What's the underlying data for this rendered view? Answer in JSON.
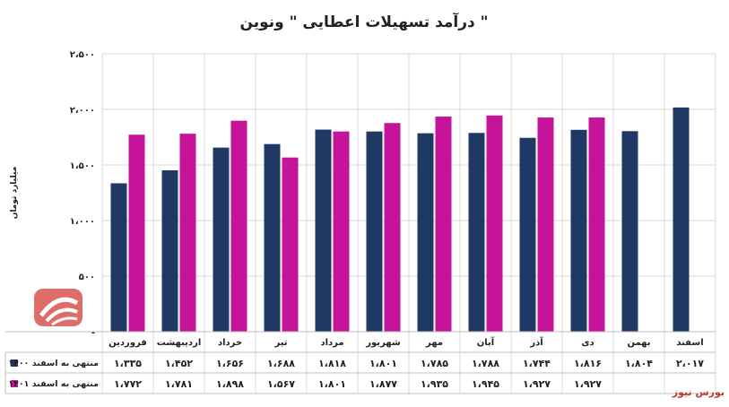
{
  "chart_data": {
    "type": "bar",
    "title": "درآمد تسهیلات اعطایی \" ونوین \"",
    "ylabel": "میلیارد تومان",
    "ylim": [
      0,
      2500
    ],
    "yticks": [
      {
        "value": 0,
        "label": "-"
      },
      {
        "value": 500,
        "label": "۵۰۰"
      },
      {
        "value": 1000,
        "label": "۱،۰۰۰"
      },
      {
        "value": 1500,
        "label": "۱،۵۰۰"
      },
      {
        "value": 2000,
        "label": "۲،۰۰۰"
      },
      {
        "value": 2500,
        "label": "۲،۵۰۰"
      }
    ],
    "grid": true,
    "legend": "bottom-left table",
    "categories": [
      "فروردین",
      "اردیبهشت",
      "خرداد",
      "تیر",
      "مرداد",
      "شهریور",
      "مهر",
      "آبان",
      "آذر",
      "دی",
      "بهمن",
      "اسفند"
    ],
    "series": [
      {
        "name": "منتهی به اسفند ۱۴۰۰",
        "color": "#1F3864",
        "values": [
          1335,
          1452,
          1656,
          1688,
          1818,
          1801,
          1785,
          1788,
          1744,
          1816,
          1804,
          2017
        ],
        "labels": [
          "۱،۳۳۵",
          "۱،۴۵۲",
          "۱،۶۵۶",
          "۱،۶۸۸",
          "۱،۸۱۸",
          "۱،۸۰۱",
          "۱،۷۸۵",
          "۱،۷۸۸",
          "۱،۷۴۴",
          "۱،۸۱۶",
          "۱،۸۰۴",
          "۲،۰۱۷"
        ]
      },
      {
        "name": "منتهی به اسفند ۱۴۰۱",
        "color": "#C5139A",
        "values": [
          1772,
          1781,
          1898,
          1567,
          1801,
          1877,
          1935,
          1945,
          1927,
          1927,
          null,
          null
        ],
        "labels": [
          "۱،۷۷۲",
          "۱،۷۸۱",
          "۱،۸۹۸",
          "۱،۵۶۷",
          "۱،۸۰۱",
          "۱،۸۷۷",
          "۱،۹۳۵",
          "۱،۹۴۵",
          "۱،۹۲۷",
          "۱،۹۲۷",
          "",
          ""
        ]
      }
    ]
  },
  "watermark": {
    "text": "بورس نیوز"
  },
  "source": {
    "text": "بورس نیوز"
  }
}
